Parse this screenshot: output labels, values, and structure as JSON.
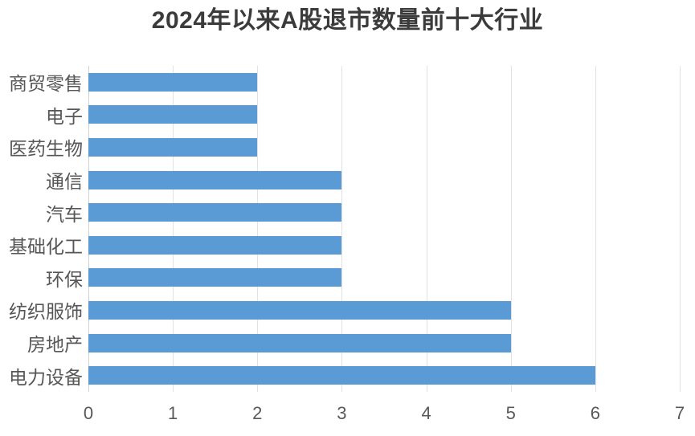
{
  "chart_data": {
    "type": "bar",
    "orientation": "horizontal",
    "title": "2024年以来A股退市数量前十大行业",
    "categories": [
      "商贸零售",
      "电子",
      "医药生物",
      "通信",
      "汽车",
      "基础化工",
      "环保",
      "纺织服饰",
      "房地产",
      "电力设备"
    ],
    "values": [
      2,
      2,
      2,
      3,
      3,
      3,
      3,
      5,
      5,
      6
    ],
    "xlabel": "",
    "ylabel": "",
    "xlim": [
      0,
      7
    ],
    "xticks": [
      "0",
      "1",
      "2",
      "3",
      "4",
      "5",
      "6",
      "7"
    ],
    "grid": true,
    "legend": false,
    "colors": {
      "bar": "#5B9BD5",
      "gridline": "#e2e2e2",
      "zero_line": "#d2d2d2",
      "title_text": "#3b3b3b",
      "category_text": "#565656",
      "tick_text": "#595959",
      "background": "#ffffff"
    }
  }
}
